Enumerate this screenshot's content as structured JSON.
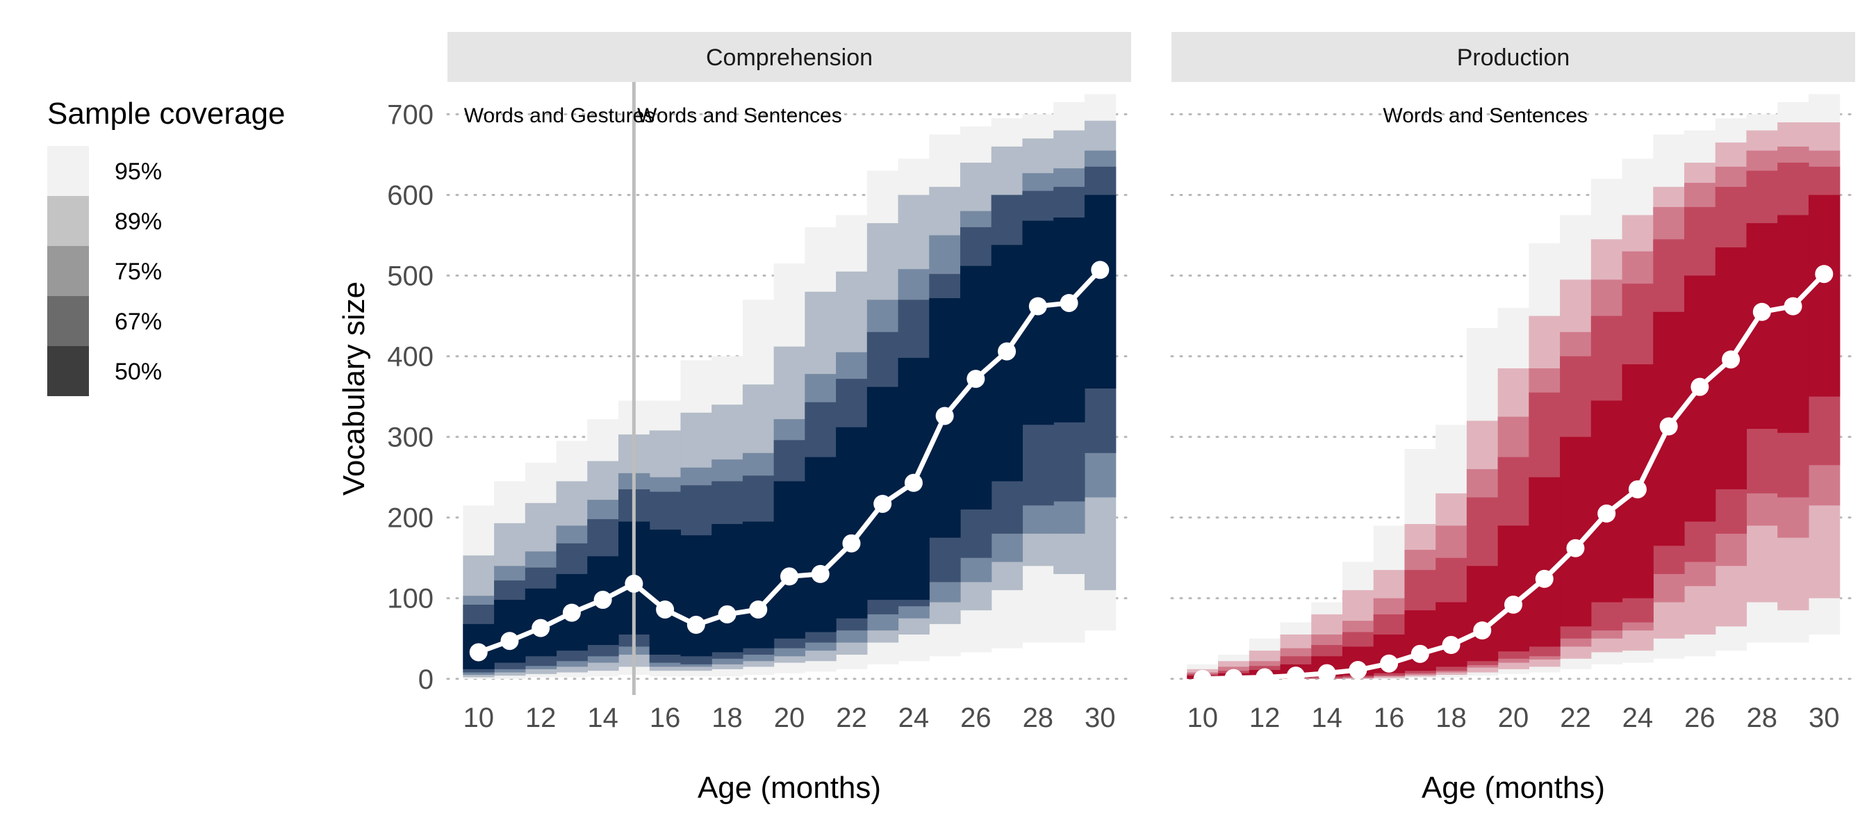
{
  "chart_data": {
    "type": "area",
    "legend": {
      "title": "Sample coverage",
      "levels": [
        "95%",
        "89%",
        "75%",
        "67%",
        "50%"
      ],
      "colors": [
        "#f2f2f2",
        "#c4c4c4",
        "#999999",
        "#6b6b6b",
        "#3d3d3d"
      ],
      "placement": "left"
    },
    "x": [
      10,
      11,
      12,
      13,
      14,
      15,
      16,
      17,
      18,
      19,
      20,
      21,
      22,
      23,
      24,
      25,
      26,
      27,
      28,
      29,
      30
    ],
    "xticks": [
      10,
      12,
      14,
      16,
      18,
      20,
      22,
      24,
      26,
      28,
      30
    ],
    "yticks": [
      0,
      100,
      200,
      300,
      400,
      500,
      600,
      700
    ],
    "xlim": [
      9,
      31
    ],
    "ylim": [
      -20,
      740
    ],
    "xlabel": "Age (months)",
    "ylabel": "Vocabulary size",
    "grid": "horizontal dotted",
    "panels": [
      {
        "strip": "Comprehension",
        "band_colors": [
          "#f2f2f2",
          "#b3bcc8",
          "#7689a2",
          "#3d5272",
          "#002046"
        ],
        "form_divider_x": 15,
        "annotations": [
          {
            "text": "Words and Gestures",
            "x": 12.6
          },
          {
            "text": "Words and Sentences",
            "x": 18.4
          }
        ],
        "median": [
          33,
          47,
          63,
          82,
          98,
          118,
          86,
          67,
          80,
          86,
          127,
          130,
          168,
          217,
          243,
          326,
          372,
          406,
          462,
          466,
          507
        ],
        "bands": [
          {
            "level": "95%",
            "low": [
              0,
              0,
              2,
              2,
              3,
              5,
              3,
              3,
              3,
              5,
              7,
              9,
              12,
              18,
              22,
              28,
              33,
              38,
              45,
              45,
              60
            ],
            "high": [
              215,
              245,
              268,
              295,
              322,
              345,
              345,
              395,
              400,
              470,
              515,
              560,
              575,
              630,
              645,
              675,
              685,
              695,
              700,
              715,
              725
            ]
          },
          {
            "level": "89%",
            "low": [
              2,
              4,
              6,
              8,
              10,
              15,
              10,
              10,
              12,
              15,
              20,
              22,
              30,
              45,
              55,
              68,
              85,
              110,
              140,
              130,
              110
            ],
            "high": [
              153,
              193,
              218,
              245,
              270,
              303,
              308,
              330,
              340,
              365,
              412,
              480,
              505,
              565,
              600,
              610,
              640,
              660,
              670,
              680,
              692
            ]
          },
          {
            "level": "75%",
            "low": [
              5,
              8,
              12,
              15,
              20,
              30,
              15,
              15,
              18,
              22,
              28,
              35,
              45,
              60,
              75,
              95,
              120,
              145,
              180,
              180,
              225
            ],
            "high": [
              103,
              140,
              158,
              190,
              222,
              255,
              250,
              262,
              272,
              280,
              322,
              378,
              405,
              470,
              508,
              550,
              580,
              600,
              627,
              633,
              655
            ]
          },
          {
            "level": "67%",
            "low": [
              8,
              12,
              16,
              22,
              28,
              40,
              20,
              18,
              25,
              30,
              38,
              45,
              60,
              80,
              90,
              120,
              150,
              180,
              215,
              220,
              280
            ],
            "high": [
              92,
              122,
              138,
              168,
              198,
              235,
              232,
              240,
              245,
              252,
              296,
              343,
              372,
              430,
              470,
              502,
              560,
              600,
              605,
              610,
              635
            ]
          },
          {
            "level": "50%",
            "low": [
              12,
              20,
              28,
              35,
              42,
              55,
              30,
              28,
              33,
              38,
              50,
              58,
              75,
              98,
              98,
              175,
              210,
              245,
              315,
              318,
              360
            ],
            "high": [
              68,
              98,
              112,
              130,
              152,
              195,
              185,
              178,
              192,
              195,
              245,
              275,
              312,
              362,
              398,
              472,
              512,
              538,
              568,
              572,
              600
            ]
          }
        ]
      },
      {
        "strip": "Production",
        "band_colors": [
          "#f2f2f2",
          "#e1b4bd",
          "#d07b8c",
          "#c0485e",
          "#ad0c2b"
        ],
        "annotations": [
          {
            "text": "Words and Sentences",
            "x": 19.1
          }
        ],
        "median": [
          0,
          1,
          2,
          4,
          7,
          11,
          19,
          31,
          42,
          60,
          92,
          124,
          162,
          205,
          235,
          313,
          362,
          396,
          455,
          462,
          502
        ],
        "bands": [
          {
            "level": "95%",
            "low": [
              0,
              0,
              0,
              0,
              0,
              0,
              0,
              1,
              2,
              4,
              6,
              8,
              12,
              18,
              20,
              25,
              28,
              35,
              45,
              45,
              55
            ],
            "high": [
              18,
              30,
              50,
              70,
              95,
              145,
              190,
              285,
              315,
              435,
              460,
              540,
              575,
              620,
              645,
              675,
              680,
              695,
              700,
              715,
              725
            ]
          },
          {
            "level": "89%",
            "low": [
              0,
              0,
              0,
              0,
              0,
              0,
              1,
              3,
              5,
              8,
              12,
              15,
              25,
              33,
              35,
              50,
              55,
              65,
              95,
              85,
              100
            ],
            "high": [
              12,
              22,
              35,
              55,
              80,
              110,
              135,
              192,
              230,
              320,
              385,
              450,
              495,
              545,
              575,
              610,
              640,
              665,
              680,
              690,
              690
            ]
          },
          {
            "level": "75%",
            "low": [
              0,
              0,
              0,
              0,
              0,
              1,
              3,
              5,
              8,
              14,
              20,
              24,
              40,
              50,
              60,
              95,
              115,
              140,
              190,
              175,
              215
            ],
            "high": [
              8,
              15,
              22,
              38,
              55,
              72,
              100,
              160,
              190,
              260,
              325,
              385,
              430,
              495,
              530,
              585,
              615,
              635,
              655,
              660,
              655
            ]
          },
          {
            "level": "67%",
            "low": [
              0,
              0,
              0,
              1,
              1,
              2,
              4,
              7,
              10,
              17,
              25,
              28,
              50,
              60,
              70,
              130,
              145,
              180,
              230,
              225,
              265
            ],
            "high": [
              6,
              10,
              16,
              28,
              42,
              58,
              80,
              135,
              150,
              225,
              275,
              355,
              400,
              450,
              490,
              545,
              585,
              610,
              630,
              640,
              635
            ]
          },
          {
            "level": "50%",
            "low": [
              0,
              0,
              1,
              2,
              3,
              4,
              7,
              10,
              15,
              22,
              34,
              40,
              65,
              95,
              100,
              165,
              195,
              235,
              310,
              305,
              350
            ],
            "high": [
              4,
              7,
              11,
              18,
              28,
              40,
              55,
              85,
              95,
              140,
              190,
              250,
              300,
              345,
              390,
              455,
              500,
              535,
              565,
              575,
              600
            ]
          }
        ]
      }
    ]
  }
}
